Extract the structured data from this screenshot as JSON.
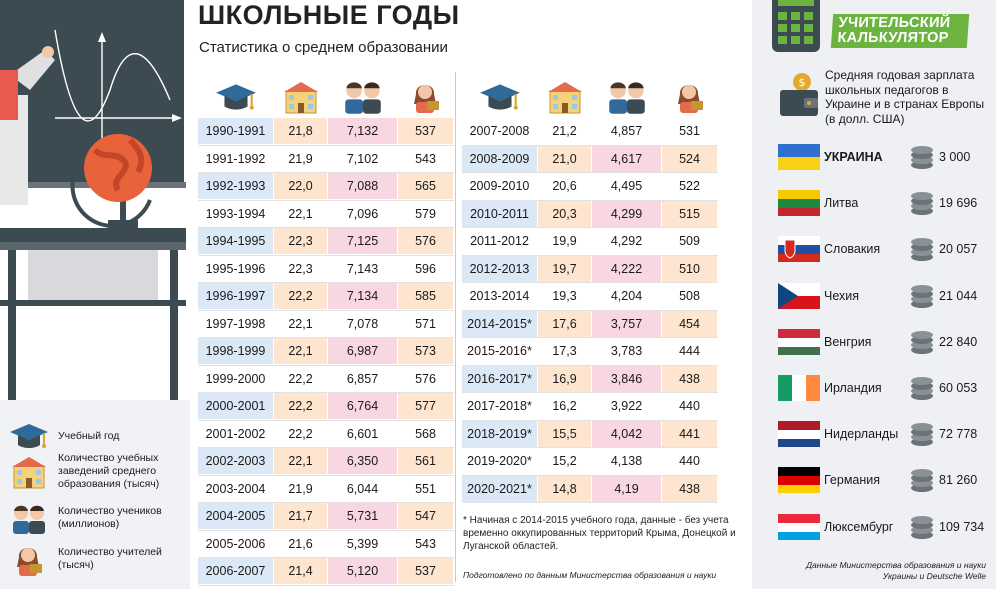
{
  "title": "ШКОЛЬНЫЕ ГОДЫ",
  "subtitle": "Статистика о среднем образовании",
  "legend": [
    {
      "icon": "graduation-cap-icon",
      "label": "Учебный год"
    },
    {
      "icon": "school-building-icon",
      "label": "Количество учебных заведений среднего образования (тысяч)"
    },
    {
      "icon": "students-icon",
      "label": "Количество учеников (миллионов)"
    },
    {
      "icon": "teacher-icon",
      "label": "Количество учителей (тысяч)"
    }
  ],
  "table_left": [
    {
      "year": "1990-1991",
      "schools": "21,8",
      "students": "7,132",
      "teachers": "537"
    },
    {
      "year": "1991-1992",
      "schools": "21,9",
      "students": "7,102",
      "teachers": "543"
    },
    {
      "year": "1992-1993",
      "schools": "22,0",
      "students": "7,088",
      "teachers": "565"
    },
    {
      "year": "1993-1994",
      "schools": "22,1",
      "students": "7,096",
      "teachers": "579"
    },
    {
      "year": "1994-1995",
      "schools": "22,3",
      "students": "7,125",
      "teachers": "576"
    },
    {
      "year": "1995-1996",
      "schools": "22,3",
      "students": "7,143",
      "teachers": "596"
    },
    {
      "year": "1996-1997",
      "schools": "22,2",
      "students": "7,134",
      "teachers": "585"
    },
    {
      "year": "1997-1998",
      "schools": "22,1",
      "students": "7,078",
      "teachers": "571"
    },
    {
      "year": "1998-1999",
      "schools": "22,1",
      "students": "6,987",
      "teachers": "573"
    },
    {
      "year": "1999-2000",
      "schools": "22,2",
      "students": "6,857",
      "teachers": "576"
    },
    {
      "year": "2000-2001",
      "schools": "22,2",
      "students": "6,764",
      "teachers": "577"
    },
    {
      "year": "2001-2002",
      "schools": "22,2",
      "students": "6,601",
      "teachers": "568"
    },
    {
      "year": "2002-2003",
      "schools": "22,1",
      "students": "6,350",
      "teachers": "561"
    },
    {
      "year": "2003-2004",
      "schools": "21,9",
      "students": "6,044",
      "teachers": "551"
    },
    {
      "year": "2004-2005",
      "schools": "21,7",
      "students": "5,731",
      "teachers": "547"
    },
    {
      "year": "2005-2006",
      "schools": "21,6",
      "students": "5,399",
      "teachers": "543"
    },
    {
      "year": "2006-2007",
      "schools": "21,4",
      "students": "5,120",
      "teachers": "537"
    }
  ],
  "table_right": [
    {
      "year": "2007-2008",
      "schools": "21,2",
      "students": "4,857",
      "teachers": "531"
    },
    {
      "year": "2008-2009",
      "schools": "21,0",
      "students": "4,617",
      "teachers": "524"
    },
    {
      "year": "2009-2010",
      "schools": "20,6",
      "students": "4,495",
      "teachers": "522"
    },
    {
      "year": "2010-2011",
      "schools": "20,3",
      "students": "4,299",
      "teachers": "515"
    },
    {
      "year": "2011-2012",
      "schools": "19,9",
      "students": "4,292",
      "teachers": "509"
    },
    {
      "year": "2012-2013",
      "schools": "19,7",
      "students": "4,222",
      "teachers": "510"
    },
    {
      "year": "2013-2014",
      "schools": "19,3",
      "students": "4,204",
      "teachers": "508"
    },
    {
      "year": "2014-2015*",
      "schools": "17,6",
      "students": "3,757",
      "teachers": "454"
    },
    {
      "year": "2015-2016*",
      "schools": "17,3",
      "students": "3,783",
      "teachers": "444"
    },
    {
      "year": "2016-2017*",
      "schools": "16,9",
      "students": "3,846",
      "teachers": "438"
    },
    {
      "year": "2017-2018*",
      "schools": "16,2",
      "students": "3,922",
      "teachers": "440"
    },
    {
      "year": "2018-2019*",
      "schools": "15,5",
      "students": "4,042",
      "teachers": "441"
    },
    {
      "year": "2019-2020*",
      "schools": "15,2",
      "students": "4,138",
      "teachers": "440"
    },
    {
      "year": "2020-2021*",
      "schools": "14,8",
      "students": "4,19",
      "teachers": "438"
    }
  ],
  "footnote": "* Начиная с 2014-2015 учебного года, данные - без учета временно оккупированных территорий Крыма, Донецкой и Луганской областей.",
  "prepared_by": "Подготовлено по данным Министерства образования и науки",
  "calculator_badge": "УЧИТЕЛЬСКИЙ КАЛЬКУЛЯТОР",
  "salary_description": "Средняя годовая зарплата школьных педагогов в Украине и в странах Европы (в долл. США)",
  "countries": [
    {
      "name": "УКРАИНА",
      "value": "3 000",
      "flag": "ukraine",
      "bold": true
    },
    {
      "name": "Литва",
      "value": "19 696",
      "flag": "lithuania"
    },
    {
      "name": "Словакия",
      "value": "20 057",
      "flag": "slovakia"
    },
    {
      "name": "Чехия",
      "value": "21 044",
      "flag": "czechia"
    },
    {
      "name": "Венгрия",
      "value": "22 840",
      "flag": "hungary"
    },
    {
      "name": "Ирландия",
      "value": "60 053",
      "flag": "ireland"
    },
    {
      "name": "Нидерланды",
      "value": "72 778",
      "flag": "netherlands"
    },
    {
      "name": "Германия",
      "value": "81 260",
      "flag": "germany"
    },
    {
      "name": "Люксембург",
      "value": "109 734",
      "flag": "luxembourg"
    }
  ],
  "source": "Данные Министерства образования и науки Украины и Deutsche Welle",
  "colors": {
    "blue_cell": "#dbe9f6",
    "orange_cell": "#fde5cf",
    "pink_cell": "#f8d7e3",
    "badge_green": "#6cb33f",
    "board": "#3c4a52"
  }
}
